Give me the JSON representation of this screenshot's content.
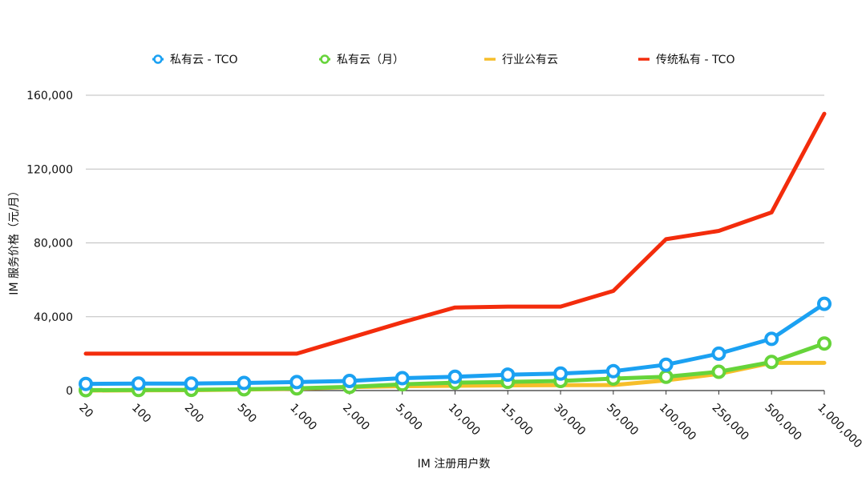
{
  "chart_data": {
    "type": "line",
    "title": "",
    "xlabel": "IM 注册用户数",
    "ylabel": "IM 服务价格（元/月）",
    "categories": [
      "20",
      "100",
      "200",
      "500",
      "1,000",
      "2,000",
      "5,000",
      "10,000",
      "15,000",
      "30,000",
      "50,000",
      "100,000",
      "250,000",
      "500,000",
      "1,000,000"
    ],
    "y_ticks": [
      "0",
      "40,000",
      "80,000",
      "120,000",
      "160,000"
    ],
    "ylim": [
      0,
      160000
    ],
    "grid": true,
    "legend_position": "top",
    "series": [
      {
        "name": "私有云 - TCO",
        "color": "#1BA1F2",
        "marker": "ring",
        "values": [
          3600,
          3800,
          3800,
          4100,
          4600,
          5200,
          6700,
          7500,
          8600,
          9200,
          10500,
          14000,
          20000,
          28000,
          47000
        ]
      },
      {
        "name": "私有云（月）",
        "color": "#66D43A",
        "marker": "ring",
        "values": [
          200,
          300,
          400,
          700,
          1200,
          2000,
          3400,
          4300,
          4700,
          5200,
          6500,
          7500,
          10200,
          15500,
          25500
        ]
      },
      {
        "name": "行业公有云",
        "color": "#F6BE2A",
        "marker": "none",
        "values": [
          0,
          100,
          200,
          500,
          1000,
          1800,
          2400,
          2600,
          2800,
          2900,
          3000,
          5500,
          9000,
          15000,
          15000
        ]
      },
      {
        "name": "传统私有 - TCO",
        "color": "#F32C0C",
        "marker": "none",
        "values": [
          20000,
          20000,
          20000,
          20000,
          20000,
          28500,
          37000,
          45000,
          45500,
          45500,
          54000,
          82000,
          86500,
          96500,
          150000
        ]
      }
    ]
  }
}
